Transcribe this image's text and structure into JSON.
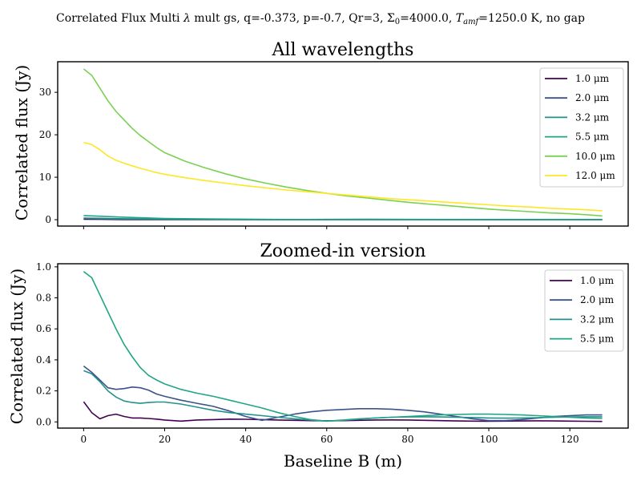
{
  "figure": {
    "suptitle": "Correlated Flux Multi λ mult gs, q=-0.373, p=-0.7, Qr=3, Σ₀=4000.0, T_amf=1250.0 K, no gap",
    "suptitle_parts": {
      "pre": "Correlated Flux Multi ",
      "lambda": "λ",
      "mid": " mult gs, q=-0.373, p=-0.7, Qr=3, Σ",
      "sigma_sub": "0",
      "mid2": "=4000.0, ",
      "T": "T",
      "T_sub": "amf",
      "post": "=1250.0 K, no gap"
    }
  },
  "chart_data": [
    {
      "type": "line",
      "title": "All wavelengths",
      "xlabel": "",
      "ylabel": "Correlated flux (Jy)",
      "xlim": [
        -6.4,
        134.4
      ],
      "ylim": [
        -1.5,
        37.2
      ],
      "xticks": [
        0,
        20,
        40,
        60,
        80,
        100,
        120
      ],
      "xtick_labels": [],
      "yticks": [
        0,
        10,
        20,
        30
      ],
      "ytick_labels": [
        "0",
        "10",
        "20",
        "30"
      ],
      "grid": false,
      "legend_position": "top-right",
      "series": [
        {
          "name": "1.0 μm",
          "color": "#440154",
          "x": [
            0,
            10,
            20,
            30,
            40,
            50,
            60,
            70,
            80,
            90,
            100,
            110,
            120,
            128
          ],
          "y": [
            0.13,
            0.03,
            0.01,
            0.02,
            0.02,
            0.01,
            0.01,
            0.02,
            0.01,
            0.01,
            0.01,
            0.01,
            0.01,
            0.01
          ]
        },
        {
          "name": "2.0 μm",
          "color": "#3b528b",
          "x": [
            0,
            10,
            20,
            30,
            40,
            50,
            60,
            70,
            80,
            90,
            100,
            110,
            120,
            128
          ],
          "y": [
            0.36,
            0.22,
            0.17,
            0.1,
            0.04,
            0.04,
            0.07,
            0.08,
            0.07,
            0.04,
            0.01,
            0.02,
            0.04,
            0.04
          ]
        },
        {
          "name": "3.2 μm",
          "color": "#21918c",
          "x": [
            0,
            10,
            20,
            30,
            40,
            50,
            60,
            70,
            80,
            90,
            100,
            110,
            120,
            128
          ],
          "y": [
            0.33,
            0.14,
            0.13,
            0.08,
            0.05,
            0.03,
            0.01,
            0.02,
            0.03,
            0.03,
            0.02,
            0.03,
            0.03,
            0.03
          ]
        },
        {
          "name": "5.5 μm",
          "color": "#21a685",
          "x": [
            0,
            10,
            20,
            30,
            40,
            50,
            60,
            70,
            80,
            90,
            100,
            110,
            120,
            128
          ],
          "y": [
            0.97,
            0.6,
            0.29,
            0.19,
            0.12,
            0.04,
            0.01,
            0.03,
            0.04,
            0.05,
            0.05,
            0.04,
            0.04,
            0.02
          ]
        },
        {
          "name": "10.0 μm",
          "color": "#7ad151",
          "x": [
            0,
            2,
            4,
            6,
            8,
            10,
            12,
            14,
            16,
            18,
            20,
            25,
            30,
            35,
            40,
            45,
            50,
            55,
            60,
            65,
            70,
            75,
            80,
            85,
            90,
            95,
            100,
            105,
            110,
            115,
            120,
            125,
            128
          ],
          "y": [
            35.5,
            34.0,
            31.0,
            28.0,
            25.5,
            23.5,
            21.5,
            19.8,
            18.4,
            17.0,
            15.8,
            13.8,
            12.2,
            10.8,
            9.6,
            8.6,
            7.7,
            6.9,
            6.2,
            5.6,
            5.1,
            4.6,
            4.1,
            3.7,
            3.3,
            2.9,
            2.5,
            2.2,
            1.9,
            1.6,
            1.4,
            1.1,
            0.9
          ]
        },
        {
          "name": "12.0 μm",
          "color": "#fde725",
          "x": [
            0,
            2,
            4,
            6,
            8,
            10,
            12,
            14,
            16,
            18,
            20,
            25,
            30,
            35,
            40,
            45,
            50,
            55,
            60,
            65,
            70,
            75,
            80,
            85,
            90,
            95,
            100,
            105,
            110,
            115,
            120,
            125,
            128
          ],
          "y": [
            18.2,
            17.7,
            16.5,
            15.0,
            14.0,
            13.3,
            12.7,
            12.1,
            11.6,
            11.1,
            10.7,
            9.9,
            9.2,
            8.6,
            8.0,
            7.5,
            7.0,
            6.6,
            6.2,
            5.8,
            5.4,
            5.0,
            4.7,
            4.4,
            4.1,
            3.8,
            3.5,
            3.2,
            3.0,
            2.7,
            2.5,
            2.3,
            2.1
          ]
        }
      ]
    },
    {
      "type": "line",
      "title": "Zoomed-in version",
      "xlabel": "Baseline B (m)",
      "ylabel": "Correlated flux (Jy)",
      "xlim": [
        -6.4,
        134.4
      ],
      "ylim": [
        -0.04,
        1.02
      ],
      "xticks": [
        0,
        20,
        40,
        60,
        80,
        100,
        120
      ],
      "xtick_labels": [
        "0",
        "20",
        "40",
        "60",
        "80",
        "100",
        "120"
      ],
      "yticks": [
        0.0,
        0.2,
        0.4,
        0.6,
        0.8,
        1.0
      ],
      "ytick_labels": [
        "0.0",
        "0.2",
        "0.4",
        "0.6",
        "0.8",
        "1.0"
      ],
      "grid": false,
      "legend_position": "top-right",
      "series": [
        {
          "name": "1.0 μm",
          "color": "#440154",
          "x": [
            0,
            2,
            4,
            6,
            8,
            10,
            12,
            14,
            16,
            18,
            20,
            24,
            28,
            32,
            36,
            40,
            44,
            48,
            52,
            56,
            60,
            64,
            68,
            72,
            76,
            80,
            84,
            88,
            92,
            96,
            100,
            104,
            108,
            112,
            116,
            120,
            124,
            128
          ],
          "y": [
            0.13,
            0.06,
            0.02,
            0.04,
            0.05,
            0.035,
            0.025,
            0.025,
            0.022,
            0.018,
            0.012,
            0.005,
            0.012,
            0.015,
            0.018,
            0.017,
            0.015,
            0.012,
            0.01,
            0.008,
            0.007,
            0.008,
            0.01,
            0.012,
            0.013,
            0.012,
            0.01,
            0.008,
            0.006,
            0.005,
            0.004,
            0.005,
            0.006,
            0.007,
            0.006,
            0.005,
            0.004,
            0.003
          ]
        },
        {
          "name": "2.0 μm",
          "color": "#3b528b",
          "x": [
            0,
            2,
            4,
            6,
            8,
            10,
            12,
            14,
            16,
            18,
            20,
            24,
            28,
            32,
            36,
            40,
            44,
            48,
            52,
            56,
            60,
            64,
            68,
            72,
            76,
            80,
            84,
            88,
            92,
            96,
            100,
            104,
            108,
            112,
            116,
            120,
            124,
            128
          ],
          "y": [
            0.36,
            0.32,
            0.27,
            0.22,
            0.21,
            0.215,
            0.225,
            0.22,
            0.205,
            0.18,
            0.165,
            0.14,
            0.12,
            0.1,
            0.07,
            0.035,
            0.01,
            0.03,
            0.05,
            0.065,
            0.075,
            0.08,
            0.085,
            0.085,
            0.082,
            0.075,
            0.065,
            0.05,
            0.035,
            0.02,
            0.008,
            0.008,
            0.015,
            0.025,
            0.035,
            0.04,
            0.045,
            0.045
          ]
        },
        {
          "name": "3.2 μm",
          "color": "#21918c",
          "x": [
            0,
            2,
            4,
            6,
            8,
            10,
            12,
            14,
            16,
            18,
            20,
            24,
            28,
            32,
            36,
            40,
            44,
            48,
            52,
            56,
            60,
            64,
            68,
            72,
            76,
            80,
            84,
            88,
            92,
            96,
            100,
            104,
            108,
            112,
            116,
            120,
            124,
            128
          ],
          "y": [
            0.33,
            0.31,
            0.26,
            0.2,
            0.16,
            0.135,
            0.125,
            0.12,
            0.125,
            0.128,
            0.128,
            0.115,
            0.095,
            0.075,
            0.06,
            0.05,
            0.04,
            0.03,
            0.02,
            0.012,
            0.005,
            0.01,
            0.018,
            0.025,
            0.03,
            0.032,
            0.033,
            0.032,
            0.03,
            0.028,
            0.025,
            0.024,
            0.025,
            0.027,
            0.03,
            0.032,
            0.033,
            0.033
          ]
        },
        {
          "name": "5.5 μm",
          "color": "#21a685",
          "x": [
            0,
            2,
            4,
            6,
            8,
            10,
            12,
            14,
            16,
            18,
            20,
            24,
            28,
            32,
            36,
            40,
            44,
            48,
            52,
            56,
            60,
            64,
            68,
            72,
            76,
            80,
            84,
            88,
            92,
            96,
            100,
            104,
            108,
            112,
            116,
            120,
            124,
            128
          ],
          "y": [
            0.97,
            0.93,
            0.82,
            0.71,
            0.6,
            0.5,
            0.42,
            0.35,
            0.3,
            0.27,
            0.245,
            0.21,
            0.185,
            0.165,
            0.14,
            0.115,
            0.09,
            0.06,
            0.035,
            0.015,
            0.005,
            0.012,
            0.02,
            0.025,
            0.03,
            0.035,
            0.04,
            0.045,
            0.048,
            0.05,
            0.05,
            0.048,
            0.045,
            0.04,
            0.035,
            0.03,
            0.025,
            0.022
          ]
        }
      ]
    }
  ]
}
